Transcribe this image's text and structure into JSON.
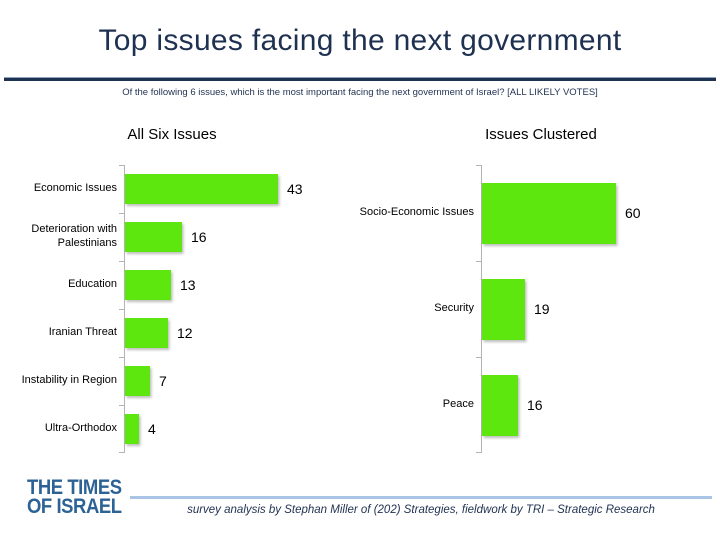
{
  "title": "Top issues facing the next government",
  "subtitle": "Of the following 6 issues, which is the most important facing the next government of Israel? [ALL LIKELY VOTES]",
  "colors": {
    "bar_green": "#5ee60f",
    "navy": "#1f3150",
    "logo_blue": "#2d6295",
    "footer_line": "#a9c5e6",
    "axis_gray": "#b3b3b3"
  },
  "chart_data": [
    {
      "type": "bar",
      "orientation": "horizontal",
      "title": "All Six Issues",
      "categories": [
        "Economic Issues",
        "Deterioration with Palestinians",
        "Education",
        "Iranian Threat",
        "Instability in Region",
        "Ultra-Orthodox"
      ],
      "values": [
        43,
        16,
        13,
        12,
        7,
        4
      ],
      "value_labels": true,
      "grid": false,
      "legend": false
    },
    {
      "type": "bar",
      "orientation": "horizontal",
      "title": "Issues Clustered",
      "categories": [
        "Socio-Economic Issues",
        "Security",
        "Peace"
      ],
      "values": [
        60,
        19,
        16
      ],
      "value_labels": true,
      "grid": false,
      "legend": false
    }
  ],
  "footer": {
    "logo_line1": "THE TIMES",
    "logo_line2": "OF ISRAEL",
    "credit": "survey analysis by Stephan Miller of (202) Strategies, fieldwork by TRI – Strategic Research"
  }
}
